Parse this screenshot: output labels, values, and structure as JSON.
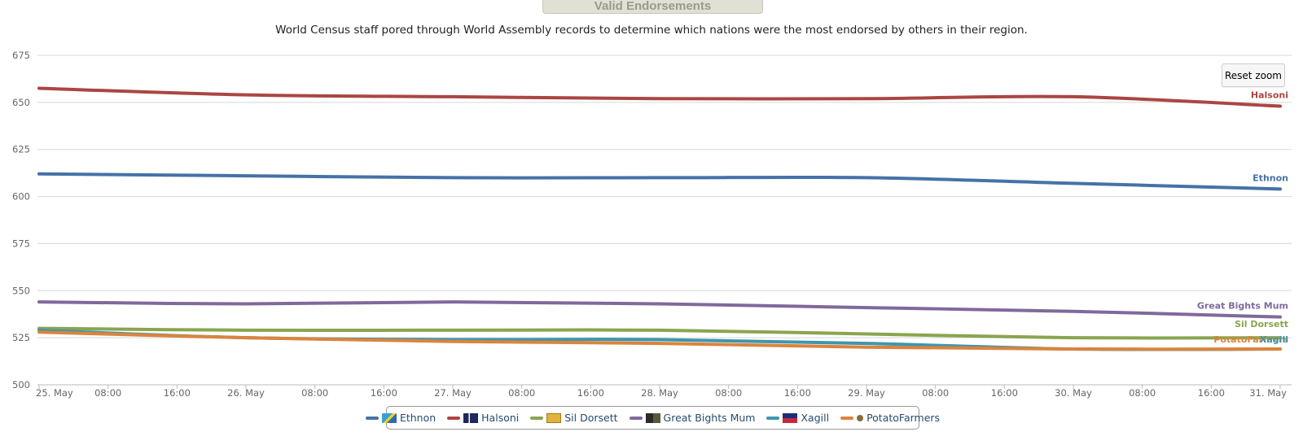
{
  "header": {
    "title": "Valid Endorsements",
    "subtitle": "World Census staff pored through World Assembly records to determine which nations were the most endorsed by others in their region."
  },
  "controls": {
    "reset_zoom_label": "Reset zoom"
  },
  "chart_data": {
    "type": "line",
    "title": "Valid Endorsements",
    "subtitle": "World Census staff pored through World Assembly records to determine which nations were the most endorsed by others in their region.",
    "xlabel": "",
    "ylabel": "",
    "ylim": [
      500,
      675
    ],
    "yticks": [
      500,
      525,
      550,
      575,
      600,
      625,
      650,
      675
    ],
    "xlim_hours": [
      0,
      144
    ],
    "xtick_labels": [
      "25. May",
      "08:00",
      "16:00",
      "26. May",
      "08:00",
      "16:00",
      "27. May",
      "08:00",
      "16:00",
      "28. May",
      "08:00",
      "16:00",
      "29. May",
      "08:00",
      "16:00",
      "30. May",
      "08:00",
      "16:00",
      "31. May"
    ],
    "x": [
      "25. May",
      "26. May",
      "27. May",
      "28. May",
      "29. May",
      "30. May",
      "31. May"
    ],
    "grid": true,
    "legend_position": "bottom-center",
    "series": [
      {
        "name": "Ethnon",
        "color": "#4572a7",
        "values": [
          612,
          611,
          610,
          610,
          610,
          607,
          604
        ]
      },
      {
        "name": "Halsoni",
        "color": "#aa4643",
        "values": [
          657.5,
          654,
          653,
          652,
          652,
          653,
          648
        ]
      },
      {
        "name": "Sil Dorsett",
        "color": "#89a54e",
        "values": [
          530,
          529,
          529,
          529,
          527,
          525,
          525
        ]
      },
      {
        "name": "Great Bights Mum",
        "color": "#80699b",
        "values": [
          544,
          543,
          544,
          543,
          541,
          539,
          536
        ]
      },
      {
        "name": "Xagill",
        "color": "#3d96ae",
        "values": [
          529,
          525,
          524,
          524,
          522,
          519,
          519
        ]
      },
      {
        "name": "PotatoFarmers",
        "color": "#db843d",
        "values": [
          528,
          525,
          523,
          522,
          520,
          519,
          519
        ]
      }
    ],
    "end_labels": [
      {
        "text": "Halsoni",
        "series": "Halsoni"
      },
      {
        "text": "Ethnon",
        "series": "Ethnon"
      },
      {
        "text": "Great Bights Mum",
        "series": "Great Bights Mum"
      },
      {
        "text": "Sil Dorsett",
        "series": "Sil Dorsett"
      },
      {
        "text": "PotatoFarmers",
        "series": "PotatoFarmers"
      },
      {
        "text": "Xagill",
        "series": "Xagill"
      }
    ]
  },
  "legend": {
    "items": [
      {
        "label": "Ethnon",
        "color": "#4572a7",
        "flag": "ethnon-flag-icon"
      },
      {
        "label": "Halsoni",
        "color": "#aa4643",
        "flag": "halsoni-flag-icon"
      },
      {
        "label": "Sil Dorsett",
        "color": "#89a54e",
        "flag": "sil-dorsett-flag-icon"
      },
      {
        "label": "Great Bights Mum",
        "color": "#80699b",
        "flag": "great-bights-mum-flag-icon"
      },
      {
        "label": "Xagill",
        "color": "#3d96ae",
        "flag": "xagill-flag-icon"
      },
      {
        "label": "PotatoFarmers",
        "color": "#db843d",
        "flag": "potato-farmers-flag-icon"
      }
    ]
  }
}
